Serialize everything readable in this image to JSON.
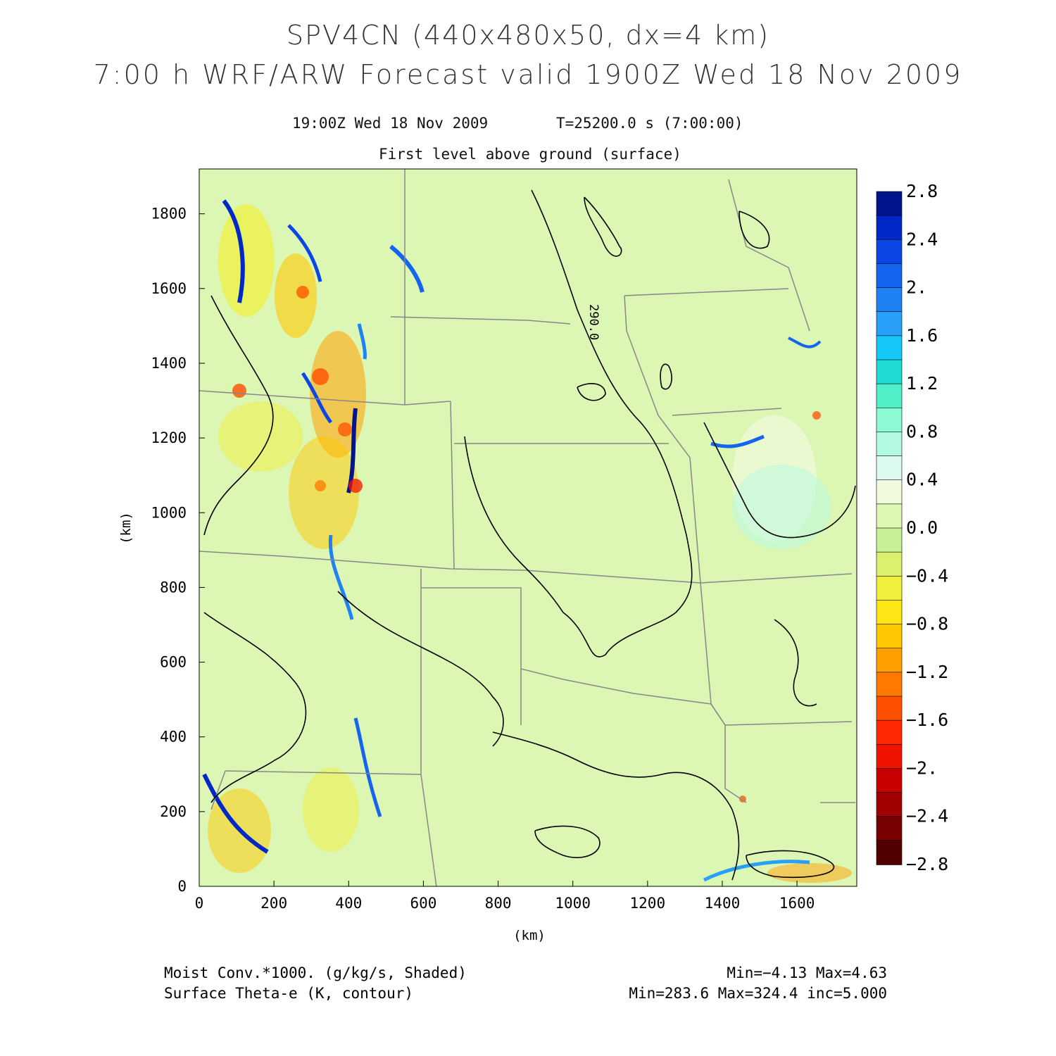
{
  "header": {
    "title_line1": "SPV4CN (440x480x50, dx=4 km)",
    "title_line2": "7:00 h WRF/ARW Forecast valid 1900Z Wed 18 Nov 2009",
    "valid_time": "19:00Z Wed 18 Nov 2009",
    "model_time": "T=25200.0 s (7:00:00)",
    "level": "First level above ground (surface)"
  },
  "map": {
    "x_axis_label": "(km)",
    "y_axis_label": "(km)",
    "x_ticks": [
      "0",
      "200",
      "400",
      "600",
      "800",
      "1000",
      "1200",
      "1400",
      "1600"
    ],
    "y_ticks": [
      "0",
      "200",
      "400",
      "600",
      "800",
      "1000",
      "1200",
      "1400",
      "1600",
      "1800"
    ],
    "x_range_km": [
      0,
      1760
    ],
    "y_range_km": [
      0,
      1920
    ],
    "contour_label": "290.0",
    "background_color": "#dcf7b4",
    "border_color": "#888888",
    "contour_color": "#000000"
  },
  "colorbar": {
    "labels": [
      "2.8",
      "2.4",
      "2.",
      "1.6",
      "1.2",
      "0.8",
      "0.4",
      "0.0",
      "−0.4",
      "−0.8",
      "−1.2",
      "−1.6",
      "−2.",
      "−2.4",
      "−2.8"
    ],
    "colors": [
      "#00148c",
      "#0028c8",
      "#0a46e6",
      "#1464f0",
      "#1e82f5",
      "#28a0fa",
      "#14c8fa",
      "#1edcd2",
      "#50f0c8",
      "#8cfad2",
      "#b4fae1",
      "#dcfaf0",
      "#f0fadc",
      "#dcf7b4",
      "#c8f096",
      "#dcf06e",
      "#f0f03c",
      "#ffe614",
      "#ffc800",
      "#ffa000",
      "#ff7800",
      "#ff5000",
      "#ff2800",
      "#f01400",
      "#c80000",
      "#a00000",
      "#780000",
      "#500000"
    ]
  },
  "footer": {
    "shaded_field": "Moist Conv.*1000. (g/kg/s, Shaded)",
    "contour_field": "Surface Theta-e (K, contour)",
    "shaded_minmax": "Min=−4.13 Max=4.63",
    "contour_minmax": "Min=283.6 Max=324.4 inc=5.000"
  }
}
